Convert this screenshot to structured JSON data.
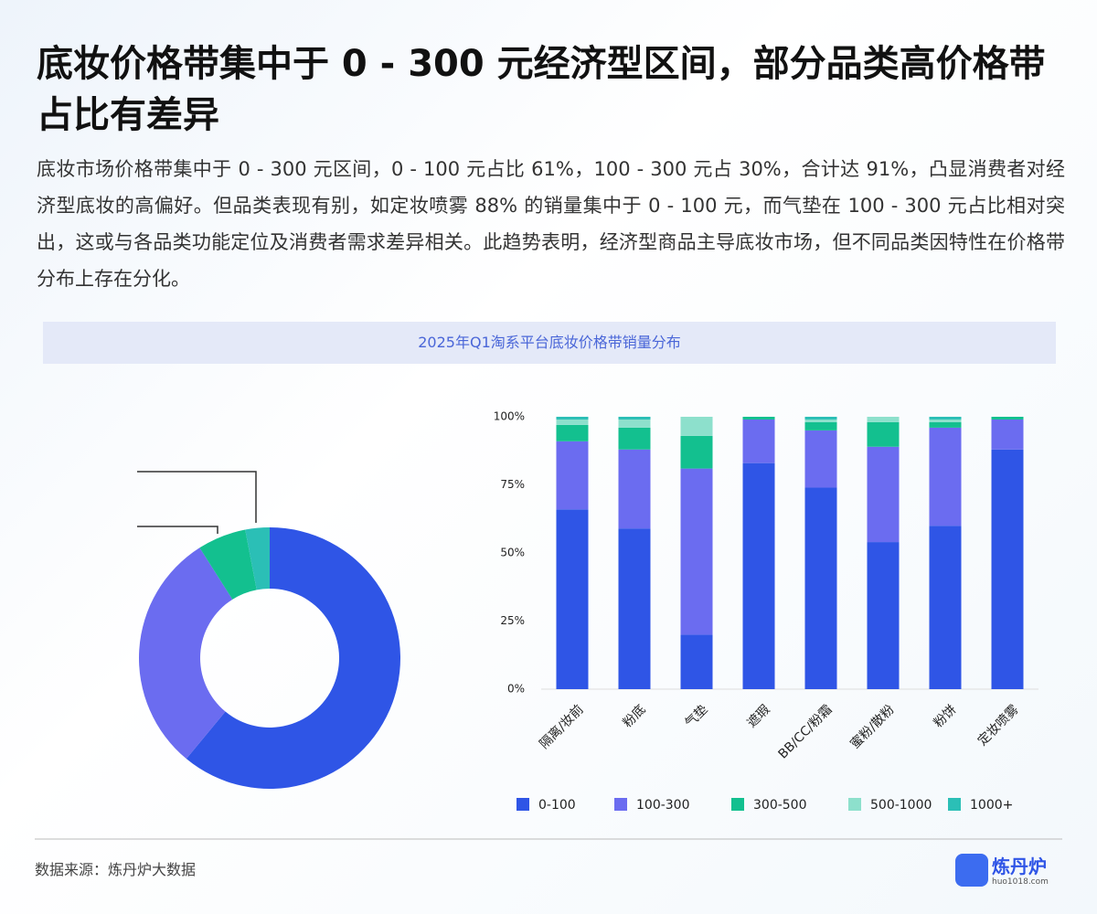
{
  "header": {
    "title": "底妆价格带集中于 0 - 300 元经济型区间，部分品类高价格带占比有差异",
    "body": "底妆市场价格带集中于 0 - 300 元区间，0 - 100 元占比 61%，100 - 300 元占 30%，合计达 91%，凸显消费者对经济型底妆的高偏好。但品类表现有别，如定妆喷雾 88% 的销量集中于 0 - 100 元，而气垫在 100 - 300 元占比相对突出，这或与各品类功能定位及消费者需求差异相关。此趋势表明，经济型商品主导底妆市场，但不同品类因特性在价格带分布上存在分化。",
    "chart_title": "2025年Q1淘系平台底妆价格带销量分布"
  },
  "chart_data": [
    {
      "type": "donut",
      "values": [
        61,
        30,
        6,
        0,
        3
      ],
      "colors": [
        "#2f55e6",
        "#6b6cf0",
        "#13c08f",
        "#8de0cc",
        "#2bbfb6"
      ]
    },
    {
      "type": "stacked-bar",
      "categories": [
        "隔离/妆前",
        "粉底",
        "气垫",
        "遮瑕",
        "BB/CC/粉霜",
        "蜜粉/散粉",
        "粉饼",
        "定妆喷雾"
      ],
      "series": [
        {
          "name": "0-100",
          "color": "#2f55e6",
          "values": [
            66,
            59,
            20,
            83,
            74,
            54,
            60,
            88
          ]
        },
        {
          "name": "100-300",
          "color": "#6b6cf0",
          "values": [
            25,
            29,
            61,
            16,
            21,
            35,
            36,
            11
          ]
        },
        {
          "name": "300-500",
          "color": "#13c08f",
          "values": [
            6,
            8,
            12,
            1,
            3,
            9,
            2,
            1
          ]
        },
        {
          "name": "500-1000",
          "color": "#8de0cc",
          "values": [
            2,
            3,
            7,
            0,
            1,
            2,
            1,
            0
          ]
        },
        {
          "name": "1000+",
          "color": "#2bbfb6",
          "values": [
            1,
            1,
            0,
            0,
            1,
            0,
            1,
            0
          ]
        }
      ],
      "ylim": [
        0,
        100
      ],
      "yticks": [
        {
          "value": 0,
          "label": "0%"
        },
        {
          "value": 25,
          "label": "25%"
        },
        {
          "value": 50,
          "label": "50%"
        },
        {
          "value": 75,
          "label": "75%"
        },
        {
          "value": 100,
          "label": "100%"
        }
      ]
    }
  ],
  "footer": {
    "source": "数据来源：炼丹炉大数据",
    "logo": "炼丹炉",
    "logo_url": "huo1018.com"
  }
}
